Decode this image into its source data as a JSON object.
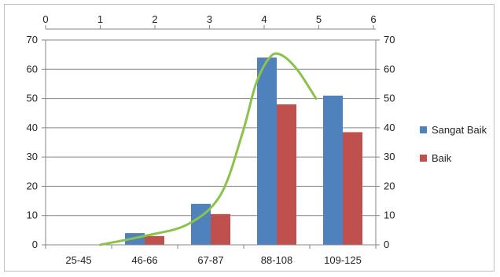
{
  "chart_data": {
    "type": "bar",
    "categories": [
      "25-45",
      "46-66",
      "67-87",
      "88-108",
      "109-125"
    ],
    "series": [
      {
        "name": "Sangat Baik",
        "values": [
          0,
          4,
          14,
          64,
          51
        ],
        "color": "#4f81bd"
      },
      {
        "name": "Baik",
        "values": [
          0,
          3,
          10.5,
          48,
          38.5
        ],
        "color": "#c0504d"
      }
    ],
    "ylim": [
      0,
      70
    ],
    "y_ticks": [
      "0",
      "10",
      "20",
      "30",
      "40",
      "50",
      "60",
      "70"
    ],
    "secondary_y_ticks": [
      "0",
      "10",
      "20",
      "30",
      "40",
      "50",
      "60",
      "70"
    ],
    "top_x_axis": {
      "range": [
        0,
        6
      ],
      "ticks": [
        "0",
        "1",
        "2",
        "3",
        "4",
        "5",
        "6"
      ]
    },
    "annotation_curve": {
      "color": "#8bc34a",
      "x": [
        1,
        1.8,
        2.6,
        3.2,
        3.6,
        3.85,
        4.1,
        4.3,
        4.6,
        4.95
      ],
      "y": [
        0,
        3,
        7,
        17,
        38,
        55,
        64,
        65,
        60,
        50
      ]
    },
    "grid": true,
    "legend_position": "right"
  }
}
